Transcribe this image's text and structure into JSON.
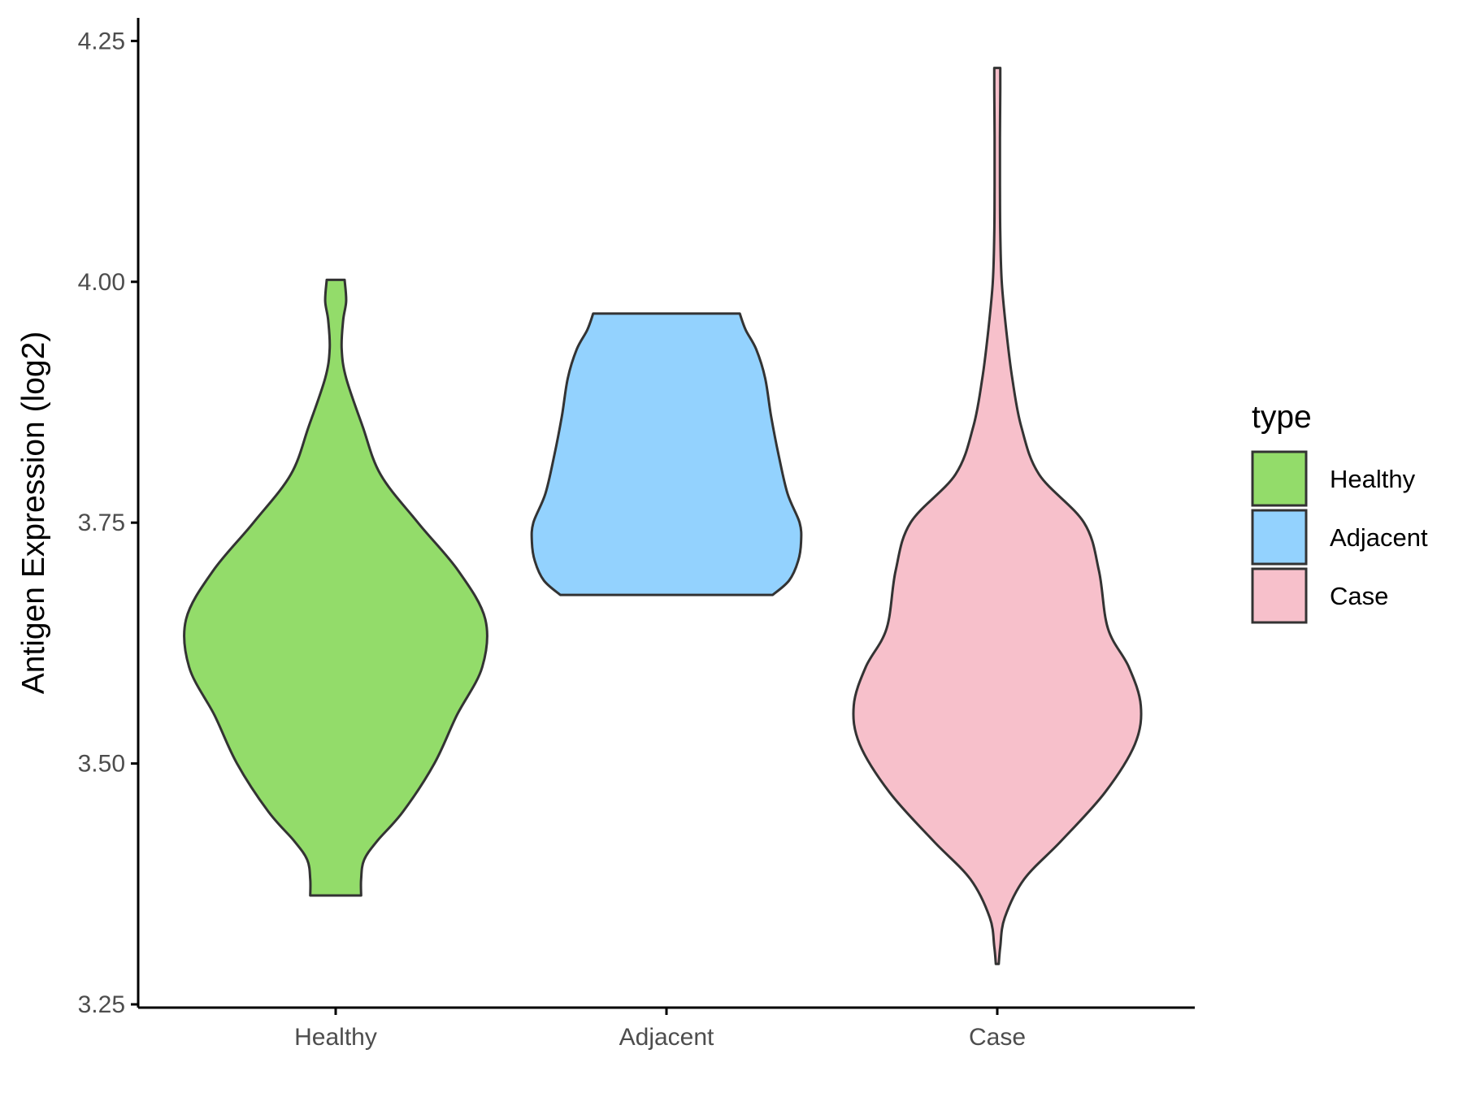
{
  "chart_data": {
    "type": "violin",
    "title": "",
    "xlabel": "",
    "ylabel": "Antigen Expression (log2)",
    "ylim": [
      3.25,
      4.25
    ],
    "y_ticks": [
      "3.25",
      "3.50",
      "3.75",
      "4.00",
      "4.25"
    ],
    "y_tick_values": [
      3.25,
      3.5,
      3.75,
      4.0,
      4.25
    ],
    "categories": [
      "Healthy",
      "Adjacent",
      "Case"
    ],
    "grid": false,
    "legend": {
      "title": "type",
      "position": "right",
      "entries": [
        "Healthy",
        "Adjacent",
        "Case"
      ]
    },
    "series": [
      {
        "name": "Healthy",
        "color": "#93dc6a",
        "min": 3.363,
        "max": 4.002,
        "density_profile": [
          [
            3.363,
            0.17
          ],
          [
            3.38,
            0.17
          ],
          [
            3.4,
            0.19
          ],
          [
            3.42,
            0.28
          ],
          [
            3.45,
            0.45
          ],
          [
            3.5,
            0.66
          ],
          [
            3.55,
            0.81
          ],
          [
            3.6,
            0.98
          ],
          [
            3.65,
            1.0
          ],
          [
            3.7,
            0.82
          ],
          [
            3.75,
            0.55
          ],
          [
            3.8,
            0.3
          ],
          [
            3.85,
            0.18
          ],
          [
            3.9,
            0.07
          ],
          [
            3.93,
            0.04
          ],
          [
            3.96,
            0.05
          ],
          [
            3.98,
            0.07
          ],
          [
            4.002,
            0.06
          ]
        ]
      },
      {
        "name": "Adjacent",
        "color": "#93d2fe",
        "min": 3.675,
        "max": 3.967,
        "density_profile": [
          [
            3.675,
            0.71
          ],
          [
            3.69,
            0.82
          ],
          [
            3.71,
            0.88
          ],
          [
            3.73,
            0.9
          ],
          [
            3.75,
            0.89
          ],
          [
            3.78,
            0.81
          ],
          [
            3.82,
            0.75
          ],
          [
            3.86,
            0.7
          ],
          [
            3.9,
            0.66
          ],
          [
            3.93,
            0.6
          ],
          [
            3.95,
            0.53
          ],
          [
            3.967,
            0.49
          ]
        ]
      },
      {
        "name": "Case",
        "color": "#f7c0cb",
        "min": 3.292,
        "max": 4.222,
        "density_profile": [
          [
            3.292,
            0.01
          ],
          [
            3.31,
            0.02
          ],
          [
            3.34,
            0.05
          ],
          [
            3.38,
            0.18
          ],
          [
            3.42,
            0.43
          ],
          [
            3.47,
            0.72
          ],
          [
            3.52,
            0.92
          ],
          [
            3.56,
            0.96
          ],
          [
            3.6,
            0.88
          ],
          [
            3.64,
            0.74
          ],
          [
            3.7,
            0.68
          ],
          [
            3.75,
            0.58
          ],
          [
            3.8,
            0.28
          ],
          [
            3.85,
            0.16
          ],
          [
            3.9,
            0.1
          ],
          [
            3.95,
            0.06
          ],
          [
            4.0,
            0.03
          ],
          [
            4.05,
            0.02
          ],
          [
            4.1,
            0.018
          ],
          [
            4.15,
            0.018
          ],
          [
            4.2,
            0.02
          ],
          [
            4.222,
            0.02
          ]
        ]
      }
    ]
  }
}
